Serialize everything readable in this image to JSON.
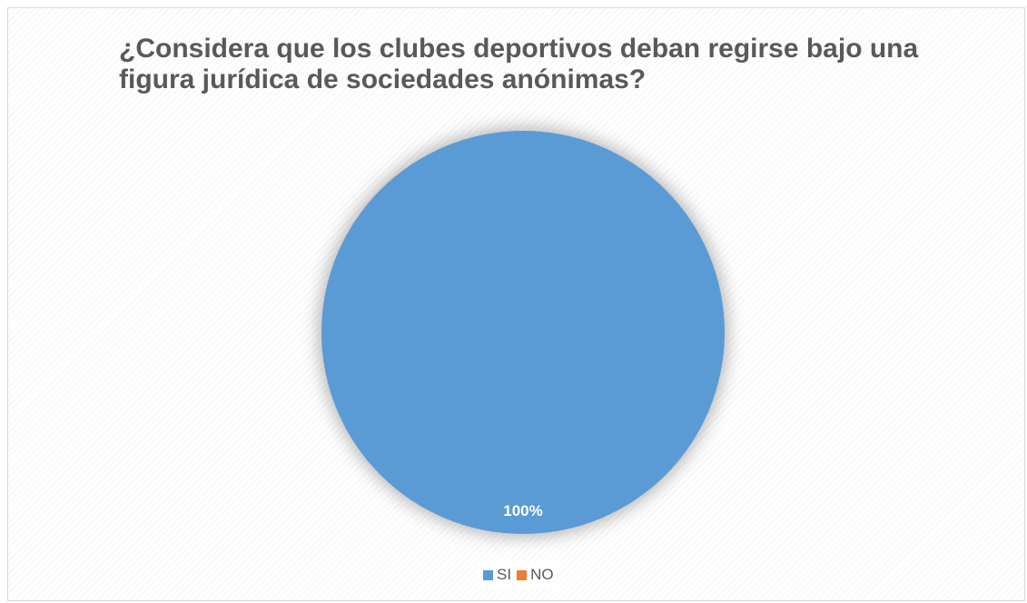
{
  "chart_data": {
    "type": "pie",
    "title": "¿Considera que los clubes deportivos deban regirse bajo una figura jurídica de sociedades anónimas?",
    "categories": [
      "SI",
      "NO"
    ],
    "values": [
      100,
      0
    ],
    "data_labels": [
      "100%"
    ],
    "colors": [
      "#5b9bd5",
      "#ed7d31"
    ],
    "legend_position": "bottom"
  }
}
